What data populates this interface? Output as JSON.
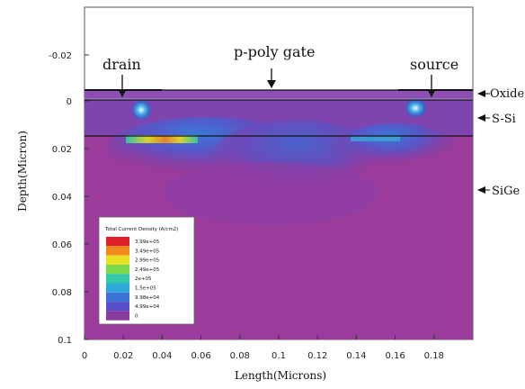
{
  "axes": {
    "xlabel": "Length(Microns)",
    "ylabel": "Depth(Micron)",
    "x_ticks": [
      "0",
      "0.02",
      "0.04",
      "0.06",
      "0.08",
      "0.1",
      "0.12",
      "0.14",
      "0.16",
      "0.18"
    ],
    "y_ticks": [
      "-0.02",
      "0",
      "0.02",
      "0.04",
      "0.06",
      "0.08",
      "0.1"
    ]
  },
  "callouts": {
    "drain": "drain",
    "gate": "p-poly gate",
    "source": "source"
  },
  "layers": {
    "oxide": "Oxide",
    "ssi": "S-Si",
    "sige": "SiGe"
  },
  "legend": {
    "title": "Total Current Density (A/cm2)",
    "values": [
      "3.99e+05",
      "3.49e+05",
      "2.99e+05",
      "2.49e+05",
      "2e+05",
      "1.5e+05",
      "9.98e+04",
      "4.99e+04",
      "0"
    ],
    "colors": [
      "#e0202a",
      "#f08a1a",
      "#e8e020",
      "#7ad84a",
      "#33c9a8",
      "#2fa6d8",
      "#3c73d6",
      "#5a4fc8",
      "#8b3a9e"
    ]
  },
  "colors": {
    "substrate": "#9b3b9b",
    "gate_region": "#ffffff"
  }
}
